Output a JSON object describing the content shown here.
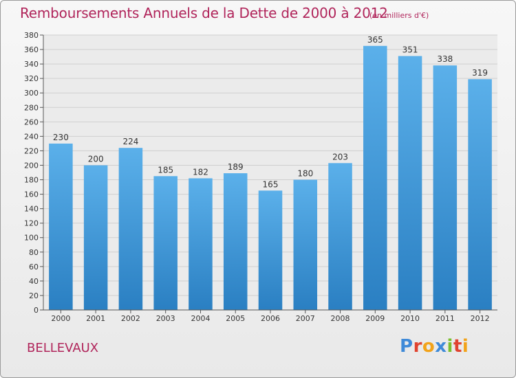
{
  "header": {
    "title": "Remboursements Annuels de la Dette de 2000 à 2012",
    "unit": "(en milliers d'€)"
  },
  "footer": {
    "town": "BELLEVAUX",
    "brand": "Proxiti",
    "brand_colors": [
      "#3f8ad8",
      "#e0432f",
      "#f2a31a",
      "#3f8ad8",
      "#7bbf2e",
      "#e0432f",
      "#f2a31a"
    ]
  },
  "chart_data": {
    "type": "bar",
    "title": "Remboursements Annuels de la Dette de 2000 à 2012",
    "subtitle": "(en milliers d'€)",
    "xlabel": "",
    "ylabel": "",
    "categories": [
      "2000",
      "2001",
      "2002",
      "2003",
      "2004",
      "2005",
      "2006",
      "2007",
      "2008",
      "2009",
      "2010",
      "2011",
      "2012"
    ],
    "values": [
      230,
      200,
      224,
      185,
      182,
      189,
      165,
      180,
      203,
      365,
      351,
      338,
      319
    ],
    "ylim": [
      0,
      380
    ],
    "yticks": [
      0,
      20,
      40,
      60,
      80,
      100,
      120,
      140,
      160,
      180,
      200,
      220,
      240,
      260,
      280,
      300,
      320,
      340,
      360,
      380
    ],
    "grid": true,
    "bar_color_top": "#5bb0ea",
    "bar_color_bottom": "#2a7fc2"
  }
}
